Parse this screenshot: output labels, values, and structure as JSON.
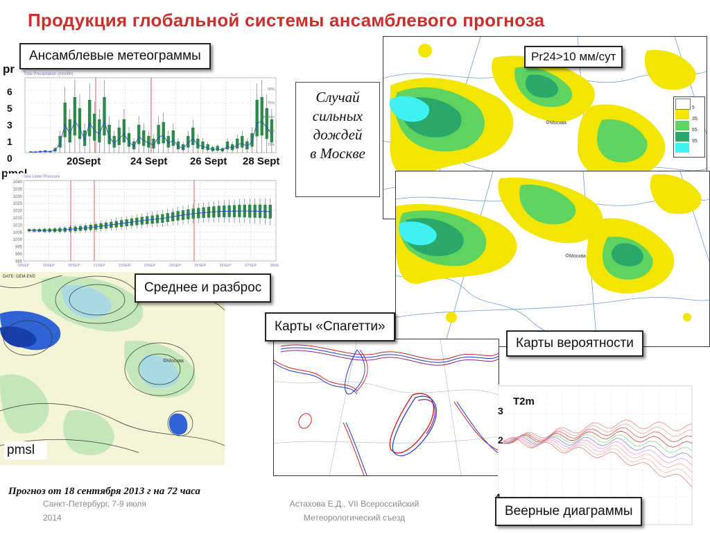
{
  "slide": {
    "title": "Продукция глобальной системы ансамблевого прогноза",
    "caption": "Прогноз от 18 сентября 2013 г на 72 часа",
    "footer_left_line1": "Санкт-Петербург, 7-9 июля",
    "footer_left_line2": "2014",
    "footer_center_line1": "Астахова Е.Д., VII Всероссийский",
    "footer_center_line2": "Метеорологический съезд"
  },
  "meteograms": {
    "box_label": "Ансамблевые метеограммы",
    "pr_label": "pr",
    "pr_ticks": [
      "6",
      "5",
      "3",
      "1",
      "0"
    ],
    "pmsl_label": "pmsl",
    "date_labels": [
      "20Sept",
      "24 Sept",
      "26 Sept",
      "28 Sept"
    ],
    "chart1_title": "Total Precipitation (mm/6h)",
    "chart2_title": "Sea Level Pressure",
    "pressure_ticks": [
      "1040",
      "1035",
      "1030",
      "1025",
      "1020",
      "1015",
      "1010",
      "1005",
      "1000",
      "995",
      "990",
      "985"
    ],
    "x_ticks": [
      "18SEP",
      "19SEP",
      "20SEP",
      "21SEP",
      "22SEP",
      "23SEP",
      "24SEP",
      "25SEP",
      "26SEP",
      "27SEP",
      "28SEP"
    ],
    "legend_pct": [
      "90%",
      "75%",
      "median",
      "25%",
      "10%"
    ]
  },
  "rain_case": {
    "line1": "Случай",
    "line2": "сильных",
    "line3": "дождей",
    "line4": "в Москве"
  },
  "prob_map_back": {
    "label": "Pr24>10 мм/сут",
    "city": "Москва",
    "legend": [
      "5",
      "35",
      "65",
      "95"
    ],
    "legend_colors": [
      "#ffffff",
      "#f2e600",
      "#5fd35f",
      "#2aa86a",
      "#3ff2f2"
    ]
  },
  "prob_map_front": {
    "label": "Карты вероятности",
    "city": "Москва"
  },
  "mean_spread": {
    "label": "Среднее и разброс",
    "bottom_label": "pmsl",
    "city": "Москва",
    "header": "DATE: GEM-ENS"
  },
  "spaghetti": {
    "label": "Карты «Спагетти»"
  },
  "fan": {
    "label": "Веерные диаграммы",
    "series_label": "T2m",
    "side_digits": [
      "3",
      "2",
      "4"
    ]
  }
}
